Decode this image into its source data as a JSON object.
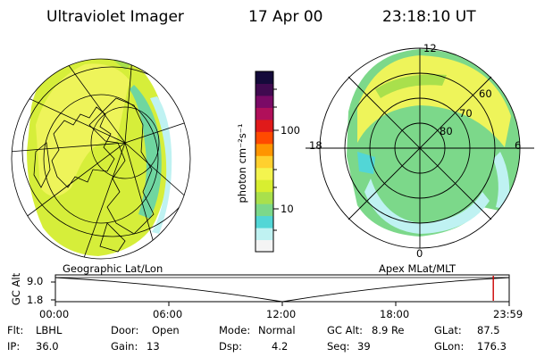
{
  "header": {
    "title": "Ultraviolet Imager",
    "date": "17 Apr 00",
    "time": "23:18:10 UT"
  },
  "colorbar": {
    "unit_label": "photon cm⁻²s⁻¹",
    "ticks": [
      "100",
      "10"
    ],
    "colors": [
      "#f4f4f4",
      "#bff2f2",
      "#52d6d6",
      "#7cd88a",
      "#a9e04c",
      "#d8ee30",
      "#f4f44e",
      "#ffd02e",
      "#ff9500",
      "#ff4a00",
      "#e01a1a",
      "#b0105a",
      "#7a0a66",
      "#400a50",
      "#140a3a"
    ]
  },
  "left_panel": {
    "caption": "Geographic Lat/Lon"
  },
  "right_panel": {
    "caption": "Apex MLat/MLT",
    "mlt_labels": {
      "top": "12",
      "left": "18",
      "right": "6",
      "bottom": "0"
    },
    "mlat_labels": [
      "60",
      "70",
      "80"
    ]
  },
  "timeline": {
    "axis_title": "GC Alt",
    "y_ticks": [
      "9.0",
      "1.8"
    ],
    "x_ticks": [
      "00:00",
      "06:00",
      "12:00",
      "18:00",
      "23:59"
    ],
    "marker_color": "#cc0000",
    "marker_time_fraction": 0.965
  },
  "info": {
    "flt_label": "Flt:",
    "flt_value": "LBHL",
    "ip_label": "IP:",
    "ip_value": "36.0",
    "door_label": "Door:",
    "door_value": "Open",
    "gain_label": "Gain:",
    "gain_value": "13",
    "mode_label": "Mode:",
    "mode_value": "Normal",
    "dsp_label": "Dsp:",
    "dsp_value": "4.2",
    "gcalt_label": "GC Alt:",
    "gcalt_value": "8.9 Re",
    "seq_label": "Seq:",
    "seq_value": "39",
    "glat_label": "GLat:",
    "glat_value": "87.5",
    "glon_label": "GLon:",
    "glon_value": "176.3"
  }
}
